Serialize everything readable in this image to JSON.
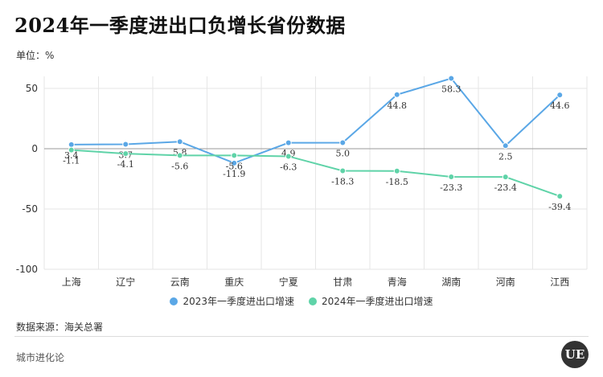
{
  "title": "2024年一季度进出口负增长省份数据",
  "unit_label": "单位：%",
  "source": "数据来源：海关总署",
  "brand": "城市进化论",
  "logo_text": "UE",
  "colors": {
    "series_2023": "#5aa7e6",
    "series_2024": "#5fd3a8",
    "grid": "#e6e6e6",
    "axis": "#999999"
  },
  "chart_data": {
    "type": "line",
    "categories": [
      "上海",
      "辽宁",
      "云南",
      "重庆",
      "宁夏",
      "甘肃",
      "青海",
      "湖南",
      "河南",
      "江西"
    ],
    "yticks": [
      50,
      0,
      -50,
      -100
    ],
    "ylim": [
      -100,
      60
    ],
    "grid": true,
    "legend_position": "bottom",
    "series": [
      {
        "name": "2023年一季度进出口增速",
        "values": [
          3.4,
          3.7,
          5.8,
          -11.9,
          4.9,
          5.0,
          44.8,
          58.3,
          2.5,
          44.6
        ],
        "labels": [
          "3.4",
          "3.7",
          "5.8",
          "-11.9",
          "4.9",
          "5.0",
          "44.8",
          "58.3",
          "2.5",
          "44.6"
        ],
        "color": "#5aa7e6"
      },
      {
        "name": "2024年一季度进出口增速",
        "values": [
          -1.1,
          -4.1,
          -5.6,
          -5.6,
          -6.3,
          -18.3,
          -18.5,
          -23.3,
          -23.4,
          -39.4
        ],
        "labels": [
          "-1.1",
          "-4.1",
          "-5.6",
          "-5.6",
          "-6.3",
          "-18.3",
          "-18.5",
          "-23.3",
          "-23.4",
          "-39.4"
        ],
        "color": "#5fd3a8"
      }
    ]
  }
}
